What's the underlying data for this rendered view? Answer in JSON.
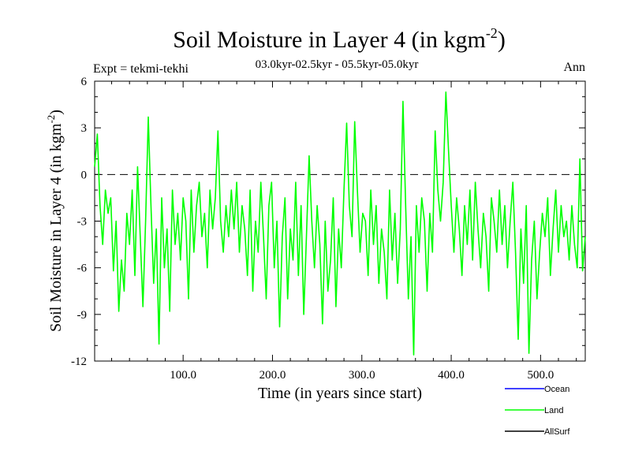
{
  "colors": {
    "land": "#00ff00",
    "ocean": "#0000ff",
    "allsurf": "#000000",
    "zero_line": "#000000"
  },
  "header": {
    "title_main": "Soil Moisture in Layer 4 (in kgm",
    "title_exp": "-2",
    "title_close": ")",
    "expt": "Expt = tekmi-tekhi",
    "period": "03.0kyr-02.5kyr - 05.5kyr-05.0kyr",
    "season": "Ann"
  },
  "legend": {
    "ocean": "Ocean",
    "land": "Land",
    "allsurf": "AllSurf"
  },
  "chart_data": {
    "type": "line",
    "title": "Soil Moisture in Layer 4 (in kgm-2)",
    "xlabel": "Time (in years since start)",
    "ylabel_main": "Soil Moisture in Layer 4 (in kgm",
    "ylabel_exp": "-2",
    "ylabel_close": ")",
    "xlim": [
      1,
      550
    ],
    "ylim": [
      -12,
      6
    ],
    "xticks": [
      100,
      200,
      300,
      400,
      500
    ],
    "xtick_labels": [
      "100.0",
      "200.0",
      "300.0",
      "400.0",
      "500.0"
    ],
    "yticks": [
      -12,
      -9,
      -6,
      -3,
      0,
      3,
      6
    ],
    "ytick_labels": [
      "-12",
      "-9",
      "-6",
      "-3",
      "0",
      "3",
      "6"
    ],
    "reference_line": 0,
    "series": [
      {
        "name": "Land",
        "x": [
          1,
          4,
          7,
          10,
          13,
          16,
          19,
          22,
          25,
          28,
          31,
          34,
          37,
          40,
          43,
          46,
          49,
          52,
          55,
          58,
          61,
          64,
          67,
          70,
          73,
          76,
          79,
          82,
          85,
          88,
          91,
          94,
          97,
          100,
          103,
          106,
          109,
          112,
          115,
          118,
          121,
          124,
          127,
          130,
          133,
          136,
          139,
          142,
          145,
          148,
          151,
          154,
          157,
          160,
          163,
          166,
          169,
          172,
          175,
          178,
          181,
          184,
          187,
          190,
          193,
          196,
          199,
          202,
          205,
          208,
          211,
          214,
          217,
          220,
          223,
          226,
          229,
          232,
          235,
          238,
          241,
          244,
          247,
          250,
          253,
          256,
          259,
          262,
          265,
          268,
          271,
          274,
          277,
          280,
          283,
          286,
          289,
          292,
          295,
          298,
          301,
          304,
          307,
          310,
          313,
          316,
          319,
          322,
          325,
          328,
          331,
          334,
          337,
          340,
          343,
          346,
          349,
          352,
          355,
          358,
          361,
          364,
          367,
          370,
          373,
          376,
          379,
          382,
          385,
          388,
          391,
          394,
          397,
          400,
          403,
          406,
          409,
          412,
          415,
          418,
          421,
          424,
          427,
          430,
          433,
          436,
          439,
          442,
          445,
          448,
          451,
          454,
          457,
          460,
          463,
          466,
          469,
          472,
          475,
          478,
          481,
          484,
          487,
          490,
          493,
          496,
          499,
          502,
          505,
          508,
          511,
          514,
          517,
          520,
          523,
          526,
          529,
          532,
          535,
          538,
          541,
          544,
          547,
          550
        ],
        "values": [
          0.5,
          2.6,
          -2.0,
          -4.5,
          -1.0,
          -2.5,
          -1.5,
          -6.2,
          -3.0,
          -8.8,
          -5.5,
          -7.5,
          -2.5,
          -4.5,
          -1.0,
          -6.5,
          0.5,
          -4.0,
          -8.5,
          -3.0,
          3.7,
          -2.0,
          -7.0,
          -3.5,
          -10.9,
          -1.5,
          -6.0,
          -3.5,
          -8.8,
          -1.0,
          -4.5,
          -2.5,
          -5.5,
          -1.5,
          -3.0,
          -8.0,
          -1.0,
          -5.0,
          -2.0,
          -0.5,
          -4.0,
          -2.5,
          -6.0,
          -1.0,
          -3.5,
          -1.5,
          2.8,
          -3.0,
          -5.0,
          -2.0,
          -4.0,
          -1.0,
          -3.5,
          -0.5,
          -5.0,
          -2.0,
          -3.5,
          -6.5,
          -1.0,
          -7.5,
          -3.0,
          -5.0,
          -0.5,
          -4.0,
          -8.0,
          -2.0,
          -0.5,
          -6.0,
          -3.0,
          -9.8,
          -4.0,
          -1.5,
          -8.0,
          -3.5,
          -5.5,
          -0.5,
          -6.5,
          -2.0,
          -9.0,
          -4.0,
          1.2,
          -3.0,
          -6.0,
          -2.0,
          -4.5,
          -9.6,
          -3.0,
          -7.5,
          -5.5,
          -1.5,
          -8.5,
          -3.5,
          -6.0,
          -1.0,
          3.3,
          -2.0,
          -4.0,
          3.4,
          -1.0,
          -5.0,
          -2.5,
          -3.0,
          -6.5,
          -1.0,
          -4.5,
          -2.0,
          -7.0,
          -3.5,
          -5.0,
          -8.0,
          -1.0,
          -5.5,
          -2.5,
          -7.0,
          -3.5,
          4.7,
          -2.0,
          -8.0,
          -4.0,
          -11.6,
          -2.0,
          -5.0,
          -1.5,
          -3.0,
          -7.5,
          -2.5,
          -5.0,
          2.8,
          -1.0,
          -3.0,
          -0.5,
          5.3,
          1.5,
          -2.0,
          -5.0,
          -1.5,
          -3.5,
          -6.5,
          -2.0,
          -4.5,
          -1.0,
          -5.5,
          -0.5,
          -3.5,
          -6.0,
          -2.5,
          -4.0,
          -7.5,
          -1.5,
          -3.0,
          -5.0,
          -1.0,
          -4.5,
          -2.0,
          -6.0,
          -3.0,
          -0.5,
          -5.0,
          -10.6,
          -3.5,
          -7.0,
          -2.0,
          -11.5,
          -5.5,
          -3.0,
          -8.0,
          -5.0,
          -2.5,
          -4.0,
          -1.5,
          -6.5,
          -3.5,
          -1.0,
          -5.0,
          -2.0,
          -4.0,
          -3.0,
          -5.5,
          -2.0,
          -4.5,
          -6.0,
          1.0,
          -6.2,
          -4.0
        ]
      },
      {
        "name": "Ocean",
        "x": [],
        "values": []
      },
      {
        "name": "AllSurf",
        "x": [],
        "values": []
      }
    ]
  }
}
